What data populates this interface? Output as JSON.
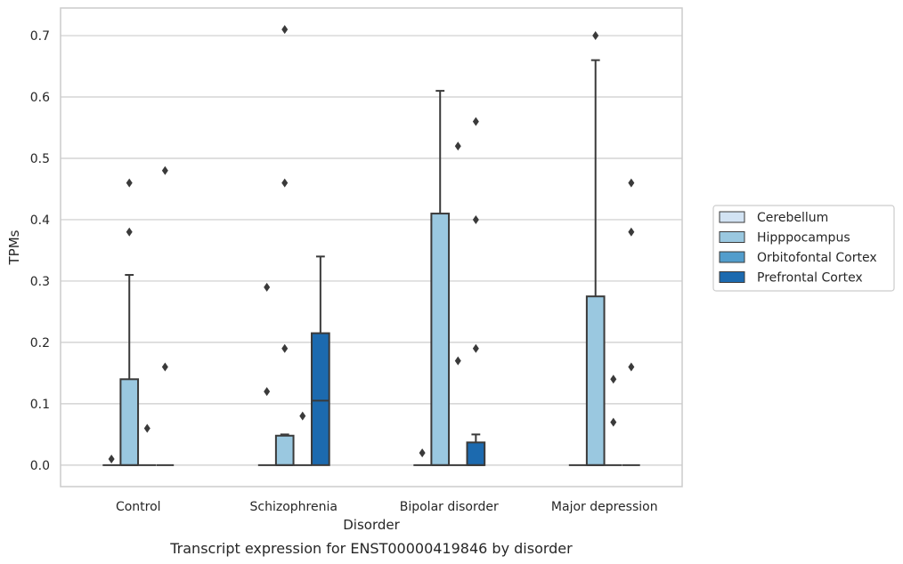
{
  "chart_data": {
    "type": "box",
    "title": "",
    "caption": "Transcript expression for ENST00000419846 by disorder",
    "xlabel": "Disorder",
    "ylabel": "TPMs",
    "ylim": [
      -0.035,
      0.745
    ],
    "yticks": [
      0.0,
      0.1,
      0.2,
      0.3,
      0.4,
      0.5,
      0.6,
      0.7
    ],
    "ytick_labels": [
      "0.0",
      "0.1",
      "0.2",
      "0.3",
      "0.4",
      "0.5",
      "0.6",
      "0.7"
    ],
    "grid": true,
    "legend_position": "right",
    "categories": [
      "Control",
      "Schizophrenia",
      "Bipolar disorder",
      "Major depression"
    ],
    "series": [
      {
        "name": "Cerebellum",
        "color": "#d2e3f3",
        "boxes": [
          {
            "q1": 0,
            "median": 0,
            "q3": 0,
            "whisker_low": 0,
            "whisker_high": 0,
            "outliers": [
              0.01
            ]
          },
          {
            "q1": 0,
            "median": 0,
            "q3": 0,
            "whisker_low": 0,
            "whisker_high": 0,
            "outliers": [
              0.12,
              0.29
            ]
          },
          {
            "q1": 0,
            "median": 0,
            "q3": 0,
            "whisker_low": 0,
            "whisker_high": 0,
            "outliers": [
              0.02
            ]
          },
          {
            "q1": 0,
            "median": 0,
            "q3": 0,
            "whisker_low": 0,
            "whisker_high": 0,
            "outliers": []
          }
        ]
      },
      {
        "name": "Hipppocampus",
        "color": "#9ac8e0",
        "boxes": [
          {
            "q1": 0,
            "median": 0,
            "q3": 0.14,
            "whisker_low": 0,
            "whisker_high": 0.31,
            "outliers": [
              0.38,
              0.46
            ]
          },
          {
            "q1": 0,
            "median": 0,
            "q3": 0.048,
            "whisker_low": 0,
            "whisker_high": 0.05,
            "outliers": [
              0.19,
              0.46,
              0.71
            ]
          },
          {
            "q1": 0,
            "median": 0,
            "q3": 0.41,
            "whisker_low": 0,
            "whisker_high": 0.61,
            "outliers": []
          },
          {
            "q1": 0,
            "median": 0,
            "q3": 0.275,
            "whisker_low": 0,
            "whisker_high": 0.66,
            "outliers": [
              0.7
            ]
          }
        ]
      },
      {
        "name": "Orbitofontal Cortex",
        "color": "#529dcc",
        "boxes": [
          {
            "q1": 0,
            "median": 0,
            "q3": 0,
            "whisker_low": 0,
            "whisker_high": 0,
            "outliers": [
              0.06
            ]
          },
          {
            "q1": 0,
            "median": 0,
            "q3": 0,
            "whisker_low": 0,
            "whisker_high": 0,
            "outliers": [
              0.08
            ]
          },
          {
            "q1": 0,
            "median": 0,
            "q3": 0,
            "whisker_low": 0,
            "whisker_high": 0,
            "outliers": [
              0.17,
              0.52
            ]
          },
          {
            "q1": 0,
            "median": 0,
            "q3": 0,
            "whisker_low": 0,
            "whisker_high": 0,
            "outliers": [
              0.07,
              0.14
            ]
          }
        ]
      },
      {
        "name": "Prefrontal Cortex",
        "color": "#1c6aaf",
        "boxes": [
          {
            "q1": 0,
            "median": 0,
            "q3": 0,
            "whisker_low": 0,
            "whisker_high": 0,
            "outliers": [
              0.16,
              0.48
            ]
          },
          {
            "q1": 0,
            "median": 0.105,
            "q3": 0.215,
            "whisker_low": 0,
            "whisker_high": 0.34,
            "outliers": []
          },
          {
            "q1": 0,
            "median": 0,
            "q3": 0.037,
            "whisker_low": 0,
            "whisker_high": 0.05,
            "outliers": [
              0.19,
              0.4,
              0.56
            ]
          },
          {
            "q1": 0,
            "median": 0,
            "q3": 0,
            "whisker_low": 0,
            "whisker_high": 0,
            "outliers": [
              0.16,
              0.38,
              0.46
            ]
          }
        ]
      }
    ]
  }
}
